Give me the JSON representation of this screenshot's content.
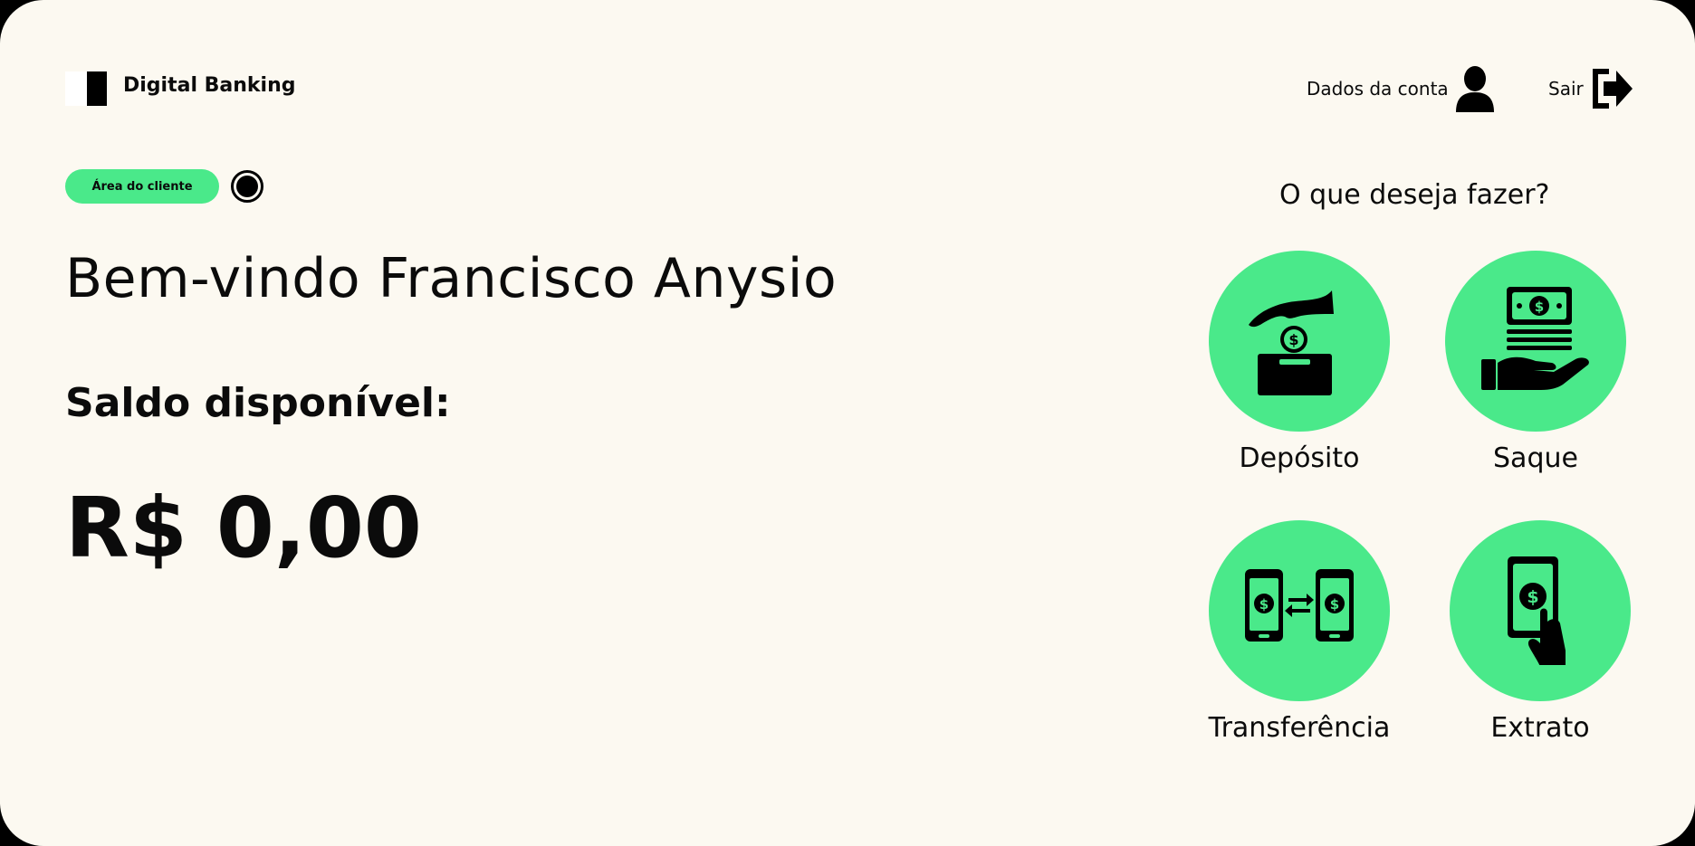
{
  "brand": {
    "name": "Digital Banking"
  },
  "header": {
    "account_label": "Dados da conta",
    "logout_label": "Sair"
  },
  "client": {
    "area_label": "Área do cliente",
    "welcome": "Bem-vindo Francisco Anysio",
    "balance_label": "Saldo disponível:",
    "balance_value": "R$ 0,00"
  },
  "actions": {
    "title": "O que deseja fazer?",
    "items": [
      {
        "label": "Depósito",
        "icon": "deposit-icon"
      },
      {
        "label": "Saque",
        "icon": "withdraw-icon"
      },
      {
        "label": "Transferência",
        "icon": "transfer-icon"
      },
      {
        "label": "Extrato",
        "icon": "statement-icon"
      }
    ]
  },
  "colors": {
    "accent": "#4ae98a",
    "background": "#fcf9f1",
    "text": "#0b0b0b"
  }
}
